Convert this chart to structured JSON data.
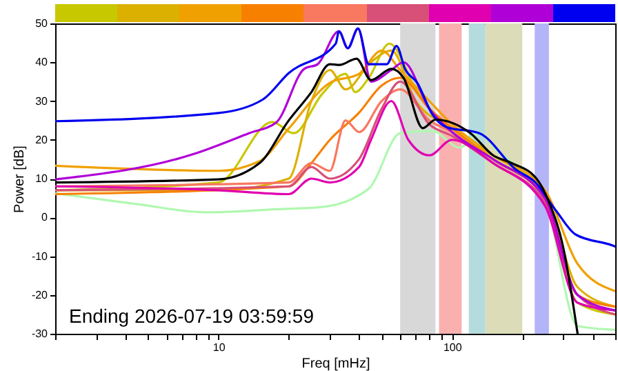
{
  "chart_data": {
    "type": "line",
    "xlabel": "Freq [mHz]",
    "ylabel": "Power [dB]",
    "log": "x",
    "grid": false,
    "marker": "none",
    "line_style": "solid",
    "xlim": [
      2,
      500
    ],
    "ylim": [
      -30,
      50
    ],
    "xticks": [
      {
        "value": 2,
        "label": null
      },
      {
        "value": 3,
        "label": null
      },
      {
        "value": 4,
        "label": null
      },
      {
        "value": 5,
        "label": null
      },
      {
        "value": 6,
        "label": null
      },
      {
        "value": 7,
        "label": null
      },
      {
        "value": 8,
        "label": null
      },
      {
        "value": 9,
        "label": null
      },
      10,
      {
        "value": 20,
        "label": null
      },
      {
        "value": 30,
        "label": null
      },
      {
        "value": 40,
        "label": null
      },
      {
        "value": 50,
        "label": null
      },
      {
        "value": 60,
        "label": null
      },
      {
        "value": 70,
        "label": null
      },
      {
        "value": 80,
        "label": null
      },
      {
        "value": 90,
        "label": null
      },
      100,
      {
        "value": 200,
        "label": null
      },
      {
        "value": 300,
        "label": null
      },
      {
        "value": 400,
        "label": null
      },
      {
        "value": 500,
        "label": null
      }
    ],
    "yticks": [
      -30,
      -20,
      -10,
      0,
      10,
      20,
      30,
      40,
      50
    ],
    "bands": [
      {
        "axis": "x",
        "from": 60,
        "to": 85,
        "color": "#d8d8d8"
      },
      {
        "axis": "x",
        "from": 88,
        "to": 110,
        "color": "#fbb0b0"
      },
      {
        "axis": "x",
        "from": 118,
        "to": 139,
        "color": "#b4dcdc"
      },
      {
        "axis": "x",
        "from": 139,
        "to": 200,
        "color": "#dcdcb8"
      },
      {
        "axis": "x",
        "from": 226,
        "to": 260,
        "color": "#b4b4f8"
      }
    ],
    "annotations": [
      "Ending 2026-07-19 03:59:59"
    ],
    "series": [
      {
        "color": "#b0f8b0",
        "x": [
          2,
          4.5,
          8.9,
          17.7,
          27.8,
          44,
          60,
          82,
          108,
          131,
          157,
          200,
          250,
          345,
          500
        ],
        "values": [
          6.2,
          3.4,
          1.3,
          2.1,
          2.7,
          7.4,
          21.7,
          22.3,
          18,
          21.7,
          17,
          12,
          5,
          -28,
          -29
        ]
      },
      {
        "color": "#c8c800",
        "x": [
          2,
          10,
          17,
          21,
          27.8,
          35,
          38.5,
          44,
          54,
          70,
          100,
          150,
          250,
          345,
          500
        ],
        "values": [
          7,
          9,
          24.6,
          21.7,
          31.8,
          37,
          32.3,
          35.9,
          44.8,
          33,
          22,
          16,
          5,
          -22,
          -25
        ]
      },
      {
        "color": "#dcb000",
        "x": [
          2,
          10,
          20,
          25,
          30,
          35,
          45,
          55,
          70,
          100,
          150,
          250,
          345,
          500
        ],
        "values": [
          7,
          7,
          10,
          30,
          38,
          33,
          40,
          43,
          30,
          23,
          15,
          6,
          -18,
          -23
        ]
      },
      {
        "color": "#f0a000",
        "x": [
          2,
          10,
          15,
          20,
          30,
          40,
          50,
          60,
          80,
          100,
          150,
          250,
          345,
          500
        ],
        "values": [
          13.3,
          12,
          14.5,
          22.9,
          34.7,
          37,
          43,
          38,
          30,
          24,
          16,
          7,
          -12,
          -19
        ]
      },
      {
        "color": "#f88000",
        "x": [
          2,
          20,
          25,
          30,
          40,
          50,
          60,
          80,
          100,
          150,
          250,
          345,
          500
        ],
        "values": [
          6,
          8,
          14,
          20,
          27,
          34,
          36,
          28,
          23,
          15,
          5,
          -20,
          -23
        ]
      },
      {
        "color": "#f87860",
        "x": [
          2,
          20,
          25,
          30,
          35,
          40,
          50,
          60,
          80,
          100,
          150,
          250,
          345,
          500
        ],
        "values": [
          8,
          9,
          14,
          12,
          25,
          22,
          30,
          33,
          25,
          22,
          14,
          4,
          -20,
          -24
        ]
      },
      {
        "color": "#d85078",
        "x": [
          2,
          20,
          25,
          30,
          40,
          50,
          60,
          80,
          100,
          150,
          250,
          345,
          500
        ],
        "values": [
          7,
          8,
          13,
          10,
          15,
          28,
          35,
          24,
          21,
          14,
          4,
          -20,
          -25
        ]
      },
      {
        "color": "#e000b0",
        "x": [
          2,
          10,
          20,
          25,
          30,
          40,
          45,
          55,
          65,
          80,
          100,
          150,
          250,
          345,
          500
        ],
        "values": [
          8,
          7,
          6,
          10,
          9,
          13,
          20,
          30,
          20,
          16,
          20,
          14,
          3,
          -22,
          -24
        ]
      },
      {
        "color": "#b000d8",
        "x": [
          2,
          7.8,
          13.5,
          17.7,
          23.3,
          26.6,
          32.8,
          35.8,
          39.6,
          45,
          55,
          62,
          80,
          100,
          150,
          250,
          345,
          500
        ],
        "values": [
          9.8,
          16.3,
          21.7,
          24.5,
          38.3,
          39.5,
          48,
          43.6,
          48.7,
          35,
          38,
          40,
          28,
          22,
          15,
          5,
          -20,
          -24
        ]
      },
      {
        "color": "#0000f0",
        "x": [
          2,
          10,
          15.5,
          20,
          31.8,
          32.8,
          35.8,
          39.6,
          44,
          52.6,
          57.9,
          62.9,
          71,
          82.5,
          94.5,
          131,
          188,
          227,
          280,
          338,
          485,
          500
        ],
        "values": [
          24.8,
          26.9,
          30.4,
          37.2,
          44.8,
          48,
          43.6,
          48.7,
          39.5,
          39.5,
          44.2,
          38.3,
          34.7,
          26.5,
          23.3,
          21.7,
          12.3,
          9.1,
          1.6,
          -4.4,
          -7.2,
          -7.5
        ]
      },
      {
        "color": "#000000",
        "x": [
          2,
          10,
          15,
          20,
          25,
          30,
          33,
          39,
          45,
          55,
          62,
          75,
          85,
          120,
          150,
          180,
          230,
          260,
          300,
          345
        ],
        "values": [
          9,
          9.8,
          14,
          25,
          32.3,
          39.5,
          39.3,
          40.9,
          35.4,
          38.3,
          36,
          23,
          25.2,
          21.7,
          16,
          14,
          10,
          4,
          -8,
          -30
        ]
      }
    ]
  }
}
